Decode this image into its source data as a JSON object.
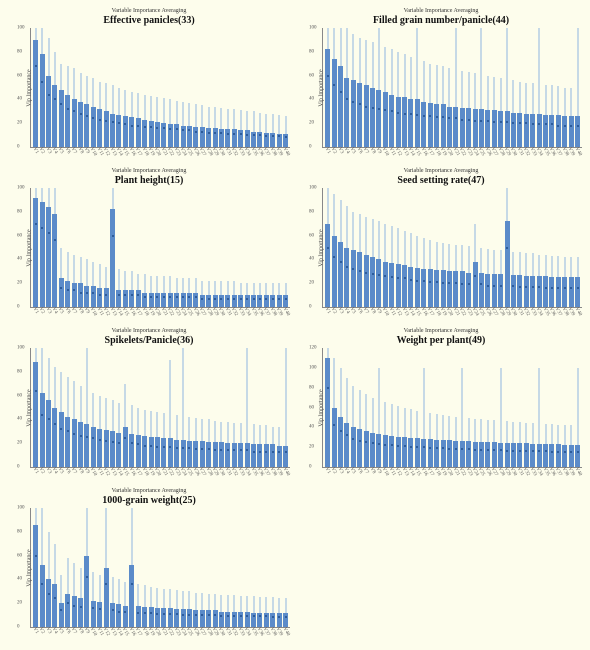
{
  "subtitle_text": "Variable Importance Averaging",
  "ylabel_text": "Vip Importance",
  "bar_color": "#5b8bc9",
  "whisker_color": "#8fb5df",
  "dot_color": "#1f4e8c",
  "background_color": "#fdfdec",
  "axis_color": "#888888",
  "title_fontsize": 10,
  "subtitle_fontsize": 6,
  "label_fontsize": 6,
  "tick_fontsize": 5,
  "n_bars": 40,
  "panels": [
    {
      "title": "Effective panicles(33)",
      "ylim": [
        0,
        100
      ],
      "ytick_step": 20,
      "bars": [
        90,
        78,
        60,
        52,
        48,
        44,
        40,
        38,
        36,
        34,
        32,
        30,
        28,
        27,
        26,
        25,
        24,
        23,
        22,
        21,
        20,
        19,
        19,
        18,
        18,
        17,
        17,
        16,
        16,
        15,
        15,
        15,
        14,
        14,
        13,
        13,
        12,
        12,
        11,
        11
      ],
      "whisk": [
        100,
        100,
        92,
        80,
        70,
        68,
        66,
        62,
        60,
        58,
        55,
        54,
        52,
        50,
        48,
        46,
        45,
        44,
        43,
        42,
        41,
        40,
        39,
        38,
        37,
        36,
        35,
        34,
        34,
        33,
        32,
        32,
        31,
        30,
        30,
        29,
        28,
        28,
        27,
        26
      ],
      "dots": [
        68,
        55,
        44,
        40,
        36,
        32,
        30,
        28,
        26,
        24,
        23,
        22,
        21,
        20,
        19,
        18,
        18,
        17,
        17,
        16,
        16,
        15,
        15,
        14,
        14,
        13,
        13,
        12,
        12,
        12,
        11,
        11,
        11,
        10,
        10,
        10,
        9,
        9,
        9,
        8
      ]
    },
    {
      "title": "Filled grain number/panicle(44)",
      "ylim": [
        0,
        100
      ],
      "ytick_step": 20,
      "bars": [
        82,
        74,
        68,
        58,
        56,
        54,
        52,
        50,
        48,
        46,
        44,
        42,
        42,
        40,
        40,
        38,
        37,
        36,
        36,
        34,
        34,
        33,
        33,
        32,
        32,
        31,
        31,
        30,
        30,
        29,
        29,
        28,
        28,
        28,
        27,
        27,
        27,
        26,
        26,
        26
      ],
      "whisk": [
        100,
        100,
        100,
        100,
        95,
        92,
        90,
        88,
        100,
        84,
        82,
        80,
        78,
        76,
        100,
        72,
        70,
        69,
        68,
        66,
        100,
        64,
        63,
        62,
        100,
        60,
        59,
        58,
        100,
        56,
        55,
        54,
        54,
        100,
        52,
        52,
        51,
        50,
        50,
        100
      ],
      "dots": [
        60,
        52,
        46,
        40,
        38,
        36,
        34,
        33,
        32,
        31,
        30,
        29,
        28,
        28,
        27,
        26,
        26,
        25,
        25,
        24,
        24,
        23,
        23,
        22,
        22,
        22,
        21,
        21,
        21,
        20,
        20,
        20,
        19,
        19,
        19,
        19,
        18,
        18,
        18,
        18
      ]
    },
    {
      "title": "Plant height(15)",
      "ylim": [
        0,
        100
      ],
      "ytick_step": 20,
      "bars": [
        92,
        88,
        84,
        78,
        24,
        22,
        20,
        20,
        18,
        18,
        16,
        16,
        82,
        14,
        14,
        14,
        14,
        12,
        12,
        12,
        12,
        12,
        12,
        12,
        12,
        12,
        10,
        10,
        10,
        10,
        10,
        10,
        10,
        10,
        10,
        10,
        10,
        10,
        10,
        10
      ],
      "whisk": [
        100,
        100,
        100,
        100,
        50,
        46,
        44,
        42,
        40,
        38,
        36,
        34,
        100,
        32,
        30,
        30,
        28,
        28,
        26,
        26,
        26,
        26,
        24,
        24,
        24,
        24,
        22,
        22,
        22,
        22,
        22,
        22,
        20,
        20,
        20,
        20,
        20,
        20,
        20,
        20
      ],
      "dots": [
        70,
        66,
        62,
        56,
        16,
        14,
        14,
        12,
        12,
        12,
        10,
        10,
        60,
        10,
        10,
        10,
        10,
        8,
        8,
        8,
        8,
        8,
        8,
        8,
        8,
        8,
        7,
        7,
        7,
        7,
        7,
        7,
        7,
        7,
        7,
        7,
        7,
        7,
        7,
        7
      ]
    },
    {
      "title": "Seed setting rate(47)",
      "ylim": [
        0,
        100
      ],
      "ytick_step": 20,
      "bars": [
        70,
        60,
        55,
        50,
        48,
        46,
        44,
        42,
        40,
        38,
        37,
        36,
        35,
        34,
        33,
        32,
        32,
        31,
        31,
        30,
        30,
        30,
        29,
        38,
        29,
        28,
        28,
        28,
        72,
        27,
        27,
        26,
        26,
        26,
        26,
        25,
        25,
        25,
        25,
        25
      ],
      "whisk": [
        100,
        95,
        90,
        85,
        80,
        78,
        76,
        74,
        72,
        70,
        68,
        66,
        64,
        62,
        60,
        58,
        56,
        55,
        54,
        53,
        52,
        52,
        51,
        70,
        50,
        49,
        48,
        48,
        100,
        46,
        46,
        45,
        45,
        44,
        44,
        43,
        43,
        42,
        42,
        42
      ],
      "dots": [
        50,
        42,
        38,
        34,
        32,
        30,
        29,
        28,
        27,
        26,
        25,
        24,
        24,
        23,
        22,
        22,
        21,
        21,
        20,
        20,
        20,
        19,
        19,
        26,
        19,
        18,
        18,
        18,
        50,
        18,
        17,
        17,
        17,
        17,
        16,
        16,
        16,
        16,
        16,
        16
      ]
    },
    {
      "title": "Spikelets/Panicle(36)",
      "ylim": [
        0,
        100
      ],
      "ytick_step": 20,
      "bars": [
        88,
        62,
        56,
        50,
        46,
        42,
        40,
        38,
        36,
        34,
        32,
        31,
        30,
        29,
        34,
        28,
        27,
        26,
        25,
        25,
        24,
        24,
        23,
        23,
        22,
        22,
        22,
        21,
        21,
        21,
        20,
        20,
        20,
        20,
        19,
        19,
        19,
        19,
        18,
        18
      ],
      "whisk": [
        100,
        100,
        92,
        84,
        80,
        76,
        72,
        68,
        100,
        62,
        60,
        58,
        56,
        54,
        70,
        52,
        50,
        48,
        47,
        46,
        45,
        90,
        44,
        100,
        42,
        41,
        40,
        40,
        39,
        38,
        38,
        37,
        37,
        100,
        36,
        35,
        35,
        34,
        34,
        100
      ],
      "dots": [
        64,
        44,
        40,
        36,
        32,
        30,
        28,
        26,
        25,
        24,
        23,
        22,
        21,
        20,
        24,
        20,
        19,
        18,
        18,
        17,
        17,
        17,
        16,
        16,
        16,
        15,
        15,
        15,
        14,
        14,
        14,
        14,
        14,
        14,
        13,
        13,
        13,
        13,
        13,
        13
      ]
    },
    {
      "title": "Weight per plant(49)",
      "ylim": [
        0,
        120
      ],
      "ytick_step": 20,
      "bars": [
        110,
        60,
        50,
        44,
        40,
        38,
        36,
        34,
        33,
        32,
        31,
        30,
        30,
        29,
        29,
        28,
        28,
        27,
        27,
        27,
        26,
        26,
        26,
        25,
        25,
        25,
        25,
        24,
        24,
        24,
        24,
        24,
        23,
        23,
        23,
        23,
        23,
        22,
        22,
        22
      ],
      "whisk": [
        120,
        110,
        100,
        90,
        82,
        78,
        74,
        70,
        100,
        66,
        64,
        62,
        60,
        58,
        56,
        100,
        54,
        53,
        52,
        51,
        50,
        100,
        49,
        48,
        48,
        47,
        47,
        100,
        46,
        45,
        45,
        44,
        44,
        100,
        43,
        43,
        42,
        42,
        42,
        100
      ],
      "dots": [
        80,
        42,
        36,
        32,
        28,
        26,
        25,
        24,
        23,
        22,
        22,
        21,
        21,
        20,
        20,
        20,
        19,
        19,
        19,
        18,
        18,
        18,
        18,
        17,
        17,
        17,
        17,
        17,
        16,
        16,
        16,
        16,
        16,
        16,
        16,
        15,
        15,
        15,
        15,
        15
      ]
    },
    {
      "title": "1000-grain weight(25)",
      "ylim": [
        0,
        100
      ],
      "ytick_step": 20,
      "bars": [
        86,
        52,
        40,
        36,
        20,
        28,
        26,
        24,
        60,
        22,
        21,
        50,
        20,
        19,
        18,
        52,
        18,
        17,
        17,
        16,
        16,
        16,
        15,
        15,
        15,
        14,
        14,
        14,
        14,
        13,
        13,
        13,
        13,
        13,
        12,
        12,
        12,
        12,
        12,
        12
      ],
      "whisk": [
        100,
        100,
        80,
        70,
        44,
        58,
        54,
        50,
        100,
        46,
        44,
        100,
        42,
        40,
        38,
        100,
        36,
        35,
        34,
        33,
        32,
        32,
        31,
        30,
        30,
        29,
        29,
        28,
        28,
        27,
        27,
        27,
        26,
        26,
        26,
        25,
        25,
        25,
        24,
        24
      ],
      "dots": [
        60,
        36,
        28,
        24,
        14,
        20,
        18,
        17,
        42,
        16,
        15,
        36,
        14,
        13,
        13,
        36,
        12,
        12,
        12,
        11,
        11,
        11,
        11,
        10,
        10,
        10,
        10,
        10,
        10,
        9,
        9,
        9,
        9,
        9,
        9,
        9,
        9,
        8,
        8,
        8
      ]
    }
  ]
}
